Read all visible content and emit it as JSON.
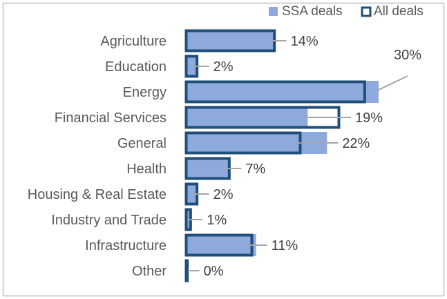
{
  "chart_data": {
    "type": "bar",
    "orientation": "horizontal",
    "categories": [
      "Agriculture",
      "Education",
      "Energy",
      "Financial Services",
      "General",
      "Health",
      "Housing & Real Estate",
      "Industry and Trade",
      "Infrastructure",
      "Other"
    ],
    "series": [
      {
        "name": "SSA deals",
        "values": [
          14,
          2,
          30,
          19,
          22,
          7,
          2,
          1,
          11,
          0
        ],
        "color": "#8EA9DB"
      },
      {
        "name": "All deals",
        "values": [
          14,
          2,
          28,
          24,
          18,
          7,
          2,
          1,
          10.5,
          0.5
        ],
        "color": "#1F4E79"
      }
    ],
    "data_labels": [
      "14%",
      "2%",
      "30%",
      "19%",
      "22%",
      "7%",
      "2%",
      "1%",
      "11%",
      "0%"
    ],
    "value_unit": "%",
    "xlim": [
      0,
      38
    ],
    "grid": false,
    "legend_position": "top-right"
  }
}
